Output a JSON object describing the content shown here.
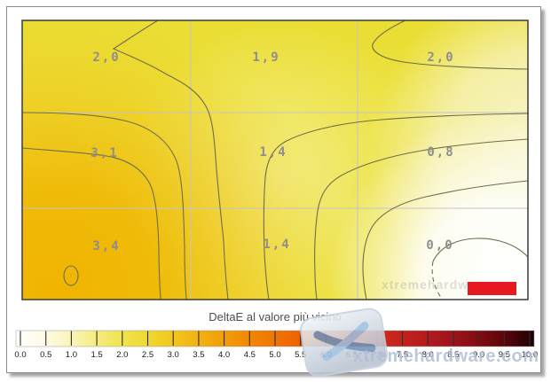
{
  "frame": {
    "background": "#ffffff",
    "border_color": "#8a8a8a",
    "shadow_color": "#9b9b9b"
  },
  "plot": {
    "border_color": "#3a3a3a",
    "grid_color": "#c4c4c4",
    "contour_color": "#6e6e4b",
    "value_label_color": "#8e8e8e",
    "cells": [
      {
        "label": "2,0"
      },
      {
        "label": "1,9"
      },
      {
        "label": "2,0"
      },
      {
        "label": "3,1"
      },
      {
        "label": "1,4"
      },
      {
        "label": "0,8"
      },
      {
        "label": "3,4"
      },
      {
        "label": "1,4"
      },
      {
        "label": "0,0"
      }
    ],
    "field_colors": {
      "base_yellow": "#ECE13C",
      "top_yellow": "#E8DB2E",
      "pale_center": "#F3ED8A",
      "pale_right": "#F8F5CF",
      "white_minimum": "#FFFFFF",
      "orange_maximum": "#F0B400"
    },
    "marker_color": "#E51A20",
    "inner_watermark": "xtremehardware"
  },
  "colorbar": {
    "label": "DeltaE al valore più vicino",
    "ticks": [
      "0.0",
      "0.5",
      "1.0",
      "1.5",
      "2.0",
      "2.5",
      "3.0",
      "3.5",
      "4.0",
      "4.5",
      "5.0",
      "5.5",
      "6.0",
      "6.5",
      "7.0",
      "7.5",
      "8.0",
      "8.5",
      "9.0",
      "9.5",
      "10.0"
    ],
    "gradient_stops": [
      "#FFFFFF",
      "#FEFBE8",
      "#FBF6C0",
      "#F6ED85",
      "#F0E452",
      "#F0DA33",
      "#F1C81F",
      "#F2B312",
      "#F29E08",
      "#F18804",
      "#EF7502",
      "#EC6002",
      "#E54D04",
      "#DA3A0B",
      "#CE2B16",
      "#C1211D",
      "#B01A1E",
      "#99121A",
      "#7D0B12",
      "#52040A",
      "#1C0103"
    ]
  },
  "watermark": {
    "text": "xtremehardware.com"
  },
  "chart_data": {
    "type": "heatmap",
    "subtype": "contour-map",
    "title": "DeltaE al valore più vicino",
    "grid_rows": 3,
    "grid_cols": 3,
    "values": [
      [
        2.0,
        1.9,
        2.0
      ],
      [
        3.1,
        1.4,
        0.8
      ],
      [
        3.4,
        1.4,
        0.0
      ]
    ],
    "value_labels": [
      [
        "2,0",
        "1,9",
        "2,0"
      ],
      [
        "3,1",
        "1,4",
        "0,8"
      ],
      [
        "3,4",
        "1,4",
        "0,0"
      ]
    ],
    "colorbar_range": [
      0.0,
      10.0
    ],
    "colorbar_tick_step": 0.5,
    "contour_levels_visible": [
      0.5,
      1.0,
      1.5,
      2.0,
      2.5,
      3.0
    ],
    "colormap_description": "white → yellow → orange → red → dark red → black",
    "legend_position": "bottom",
    "grid": true
  }
}
